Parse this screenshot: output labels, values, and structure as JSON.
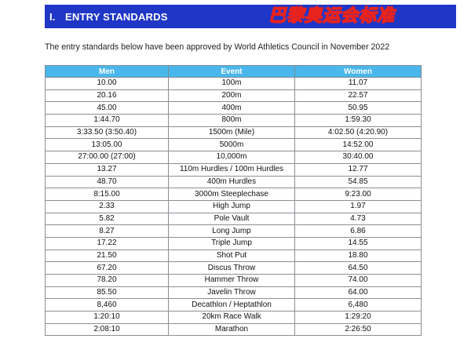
{
  "banner": {
    "number": "I.",
    "title": "ENTRY STANDARDS",
    "chinese_title": "巴黎奥运会标准",
    "background_color": "#1f36c7",
    "chinese_title_color": "#ffd21f"
  },
  "intro_text": "The entry standards below have been approved by World Athletics Council in November 2022",
  "table": {
    "header_color": "#4ab7ec",
    "headers": [
      "Men",
      "Event",
      "Women"
    ],
    "rows": [
      [
        "10.00",
        "100m",
        "11.07"
      ],
      [
        "20.16",
        "200m",
        "22.57"
      ],
      [
        "45.00",
        "400m",
        "50.95"
      ],
      [
        "1:44.70",
        "800m",
        "1:59.30"
      ],
      [
        "3:33.50 (3:50.40)",
        "1500m (Mile)",
        "4:02.50 (4:20.90)"
      ],
      [
        "13:05.00",
        "5000m",
        "14:52.00"
      ],
      [
        "27:00.00 (27:00)",
        "10,000m",
        "30:40.00"
      ],
      [
        "13.27",
        "110m Hurdles / 100m Hurdles",
        "12.77"
      ],
      [
        "48.70",
        "400m Hurdles",
        "54.85"
      ],
      [
        "8:15.00",
        "3000m Steeplechase",
        "9:23.00"
      ],
      [
        "2.33",
        "High Jump",
        "1.97"
      ],
      [
        "5.82",
        "Pole Vault",
        "4.73"
      ],
      [
        "8.27",
        "Long Jump",
        "6.86"
      ],
      [
        "17.22",
        "Triple Jump",
        "14.55"
      ],
      [
        "21.50",
        "Shot Put",
        "18.80"
      ],
      [
        "67.20",
        "Discus Throw",
        "64.50"
      ],
      [
        "78.20",
        "Hammer Throw",
        "74.00"
      ],
      [
        "85.50",
        "Javelin Throw",
        "64.00"
      ],
      [
        "8,460",
        "Decathlon / Heptathlon",
        "6,480"
      ],
      [
        "1:20:10",
        "20km Race Walk",
        "1:29:20"
      ],
      [
        "2:08:10",
        "Marathon",
        "2:26:50"
      ]
    ]
  }
}
